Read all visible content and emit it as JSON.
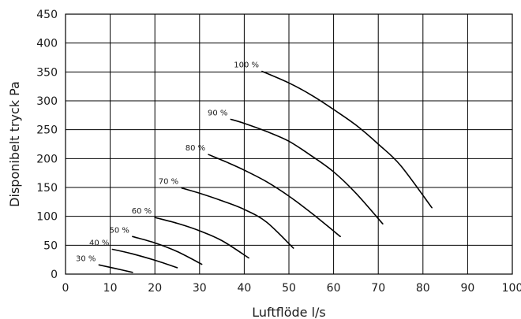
{
  "chart_data": {
    "type": "line",
    "title": "",
    "xlabel": "Luftflöde l/s",
    "ylabel": "Disponibelt tryck Pa",
    "xlim": [
      0,
      100
    ],
    "ylim": [
      0,
      450
    ],
    "x_ticks": [
      "0",
      "10",
      "20",
      "30",
      "40",
      "50",
      "60",
      "70",
      "80",
      "90",
      "100"
    ],
    "y_ticks": [
      "0",
      "50",
      "100",
      "150",
      "200",
      "250",
      "300",
      "350",
      "400",
      "450"
    ],
    "grid": true,
    "series": [
      {
        "name": "30 %",
        "x": [
          7.5,
          11,
          15
        ],
        "y": [
          16,
          10,
          3
        ]
      },
      {
        "name": "40 %",
        "x": [
          10.5,
          15,
          20,
          25
        ],
        "y": [
          43,
          35,
          24,
          11
        ]
      },
      {
        "name": "50 %",
        "x": [
          15,
          20,
          25,
          30.5
        ],
        "y": [
          65,
          54,
          39,
          17
        ]
      },
      {
        "name": "60 %",
        "x": [
          20,
          25,
          30,
          35,
          41
        ],
        "y": [
          98,
          88,
          75,
          58,
          28
        ]
      },
      {
        "name": "70 %",
        "x": [
          26,
          30,
          35,
          40,
          45,
          51
        ],
        "y": [
          149,
          140,
          127,
          112,
          90,
          45
        ]
      },
      {
        "name": "80 %",
        "x": [
          32,
          36,
          40,
          45,
          50,
          55,
          61.5
        ],
        "y": [
          207,
          194,
          180,
          160,
          135,
          106,
          65
        ]
      },
      {
        "name": "90 %",
        "x": [
          37,
          40,
          45,
          50,
          55,
          60,
          65,
          71
        ],
        "y": [
          268,
          261,
          247,
          230,
          205,
          177,
          140,
          87
        ]
      },
      {
        "name": "100 %",
        "x": [
          44,
          50,
          55,
          60,
          65,
          70,
          75,
          82
        ],
        "y": [
          351,
          331,
          310,
          285,
          258,
          225,
          188,
          115
        ]
      }
    ]
  }
}
